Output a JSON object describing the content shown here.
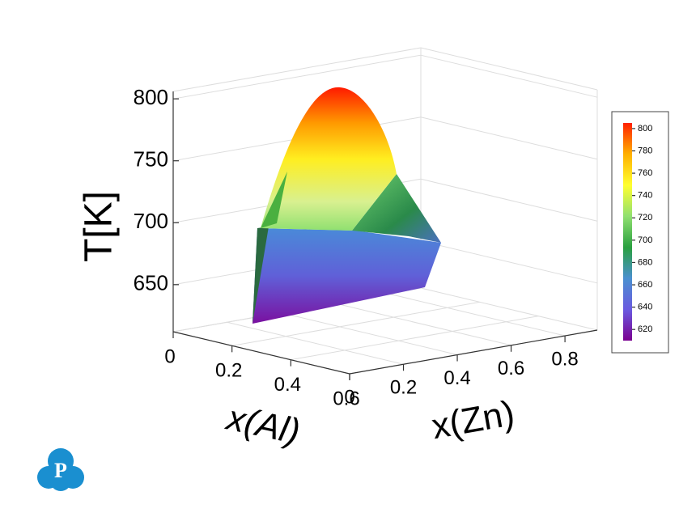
{
  "chart_data": {
    "type": "surface3d",
    "xlabel": "x(Al)",
    "ylabel": "x(Zn)",
    "zlabel": "T[K]",
    "xlim": [
      0,
      0.6
    ],
    "xticks": [
      0,
      0.2,
      0.4,
      0.6
    ],
    "ylim": [
      0,
      0.92
    ],
    "yticks": [
      0,
      0.2,
      0.4,
      0.6,
      0.8
    ],
    "zlim": [
      612,
      806
    ],
    "zticks": [
      650,
      700,
      750,
      800
    ],
    "grid": true,
    "colorbar": {
      "lim": [
        610,
        805
      ],
      "ticks": [
        620,
        640,
        660,
        680,
        700,
        720,
        740,
        760,
        780,
        800
      ],
      "colors": [
        "#7a0090",
        "#6a5ae0",
        "#4a90d0",
        "#2aa040",
        "#90e070",
        "#ffff30",
        "#ffb000",
        "#ff2000"
      ]
    }
  }
}
